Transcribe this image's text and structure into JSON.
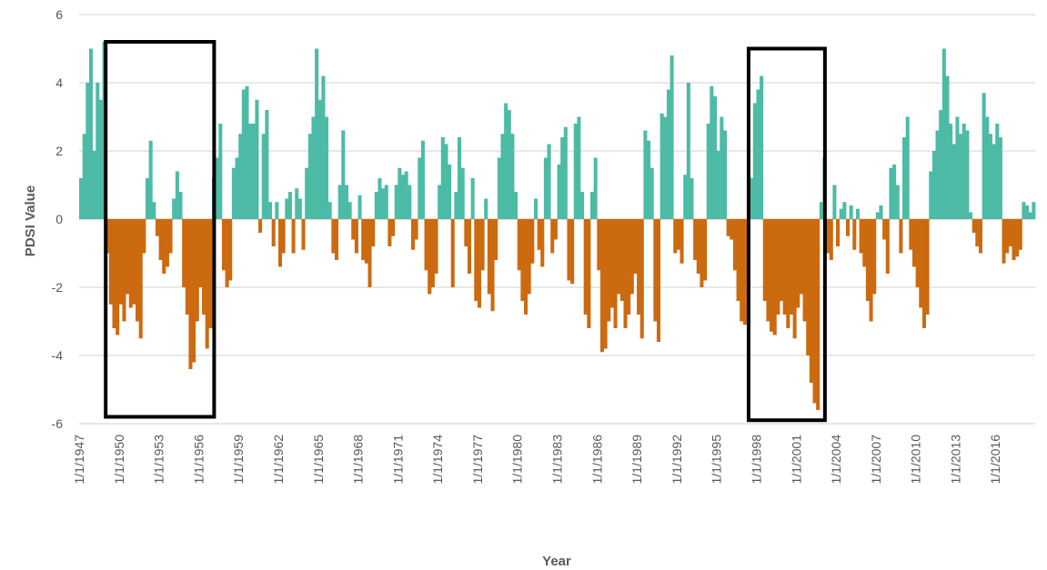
{
  "chart_data": {
    "type": "bar",
    "xlabel": "Year",
    "ylabel": "PDSI Value",
    "ylim": [
      -6,
      6
    ],
    "y_ticks": [
      "6",
      "4",
      "2",
      "0",
      "-2",
      "-4",
      "-6"
    ],
    "x_ticks": [
      "1/1/1947",
      "1/1/1950",
      "1/1/1953",
      "1/1/1956",
      "1/1/1959",
      "1/1/1962",
      "1/1/1965",
      "1/1/1968",
      "1/1/1971",
      "1/1/1974",
      "1/1/1977",
      "1/1/1980",
      "1/1/1983",
      "1/1/1986",
      "1/1/1989",
      "1/1/1992",
      "1/1/1995",
      "1/1/1998",
      "1/1/2001",
      "1/1/2004",
      "1/1/2007",
      "1/1/2010",
      "1/1/2013",
      "1/1/2016"
    ],
    "x_range": [
      "1947-01",
      "2018-12"
    ],
    "grid": "horizontal",
    "legend": "none",
    "colors": {
      "positive": "#4dbba6",
      "negative": "#cc6a10",
      "grid": "#d0d0d0",
      "text": "#595959",
      "box": "#000000"
    },
    "series": [
      {
        "values_by_year_approx": [
          [
            1947,
            1.2,
            2.5,
            4.0,
            5.0
          ],
          [
            1948,
            2.0,
            4.0,
            3.5,
            5.2
          ],
          [
            1949,
            -1.0,
            -2.5,
            -3.2,
            -3.4
          ],
          [
            1950,
            -2.5,
            -3.0,
            -2.2,
            -2.6
          ],
          [
            1951,
            -2.5,
            -3.0,
            -3.5,
            -1.0
          ],
          [
            1952,
            1.2,
            2.3,
            0.5,
            -0.5
          ],
          [
            1953,
            -1.2,
            -1.6,
            -1.4,
            -1.0
          ],
          [
            1954,
            0.6,
            1.4,
            0.8,
            -2.0
          ],
          [
            1955,
            -2.8,
            -4.4,
            -4.2,
            -3.0
          ],
          [
            1956,
            -2.0,
            -2.8,
            -3.8,
            -3.2
          ],
          [
            1957,
            1.2,
            1.8,
            2.8,
            -1.5
          ],
          [
            1958,
            -2.0,
            -1.8,
            1.5,
            1.8
          ],
          [
            1959,
            2.5,
            3.8,
            3.9,
            2.8
          ],
          [
            1960,
            2.8,
            3.5,
            -0.4,
            2.5
          ],
          [
            1961,
            3.2,
            0.5,
            -0.8,
            0.5
          ],
          [
            1962,
            -1.4,
            -1.0,
            0.6,
            0.8
          ],
          [
            1963,
            -1.0,
            0.9,
            0.6,
            -0.9
          ],
          [
            1964,
            1.5,
            2.5,
            3.0,
            5.0
          ],
          [
            1965,
            3.5,
            4.2,
            3.0,
            0.5
          ],
          [
            1966,
            -1.0,
            -1.2,
            1.0,
            2.6
          ],
          [
            1967,
            1.0,
            0.5,
            -0.6,
            -1.0
          ],
          [
            1968,
            0.7,
            -1.2,
            -1.3,
            -2.0
          ],
          [
            1969,
            -0.8,
            0.8,
            1.2,
            0.9
          ],
          [
            1970,
            1.0,
            -0.8,
            -0.5,
            1.0
          ],
          [
            1971,
            1.5,
            1.3,
            1.4,
            1.0
          ],
          [
            1972,
            -0.9,
            -0.6,
            1.8,
            2.3
          ],
          [
            1973,
            -1.5,
            -2.2,
            -2.0,
            -1.6
          ],
          [
            1974,
            1.0,
            2.4,
            2.2,
            1.6
          ],
          [
            1975,
            -2.0,
            0.8,
            2.4,
            1.5
          ],
          [
            1976,
            -0.8,
            -1.6,
            1.2,
            -2.4
          ],
          [
            1977,
            -2.6,
            -1.5,
            0.6,
            -2.2
          ],
          [
            1978,
            -2.7,
            -1.2,
            1.8,
            2.5
          ],
          [
            1979,
            3.4,
            3.2,
            2.5,
            0.8
          ],
          [
            1980,
            -1.5,
            -2.4,
            -2.8,
            -2.2
          ],
          [
            1981,
            -1.3,
            0.6,
            -0.9,
            -1.4
          ],
          [
            1982,
            1.8,
            2.2,
            -1.0,
            -0.6
          ],
          [
            1983,
            1.6,
            2.4,
            2.7,
            -1.8
          ],
          [
            1984,
            -1.9,
            2.8,
            3.0,
            0.8
          ],
          [
            1985,
            -2.8,
            -3.2,
            0.8,
            1.8
          ],
          [
            1986,
            -1.5,
            -3.9,
            -3.8,
            -3.0
          ],
          [
            1987,
            -2.6,
            -3.2,
            -2.2,
            -2.4
          ],
          [
            1988,
            -3.2,
            -2.8,
            -2.2,
            -1.6
          ],
          [
            1989,
            -2.8,
            -3.5,
            2.6,
            2.3
          ],
          [
            1990,
            1.5,
            -3.0,
            -3.6,
            3.1
          ],
          [
            1991,
            3.0,
            3.8,
            4.8,
            -1.0
          ],
          [
            1992,
            -0.9,
            -1.3,
            1.3,
            4.0
          ],
          [
            1993,
            1.2,
            -1.2,
            -1.6,
            -2.0
          ],
          [
            1994,
            -1.8,
            2.8,
            3.9,
            3.6
          ],
          [
            1995,
            2.0,
            3.0,
            2.6,
            -0.5
          ],
          [
            1996,
            -0.6,
            -1.5,
            -2.4,
            -3.0
          ],
          [
            1997,
            -3.1,
            -1.3,
            1.2,
            3.4
          ],
          [
            1998,
            3.8,
            4.2,
            -2.4,
            -3.0
          ],
          [
            1999,
            -3.3,
            -3.4,
            -2.8,
            -2.4
          ],
          [
            2000,
            -2.8,
            -3.2,
            -2.8,
            -3.5
          ],
          [
            2001,
            -2.6,
            -2.2,
            -3.0,
            -4.0
          ],
          [
            2002,
            -4.8,
            -5.4,
            -5.6,
            0.5
          ],
          [
            2003,
            1.8,
            -1.0,
            -1.2,
            1.0
          ],
          [
            2004,
            -0.8,
            0.3,
            0.5,
            -0.5
          ],
          [
            2005,
            0.4,
            -0.9,
            0.3,
            -1.0
          ],
          [
            2006,
            -1.4,
            -2.4,
            -3.0,
            -2.2
          ],
          [
            2007,
            0.2,
            0.4,
            -0.6,
            -1.6
          ],
          [
            2008,
            1.5,
            1.6,
            1.0,
            -1.0
          ],
          [
            2009,
            2.4,
            3.0,
            -0.9,
            -1.4
          ],
          [
            2010,
            -2.0,
            -2.6,
            -3.2,
            -2.8
          ],
          [
            2011,
            1.4,
            2.0,
            2.6,
            3.2
          ],
          [
            2012,
            5.0,
            4.2,
            2.8,
            2.2
          ],
          [
            2013,
            3.0,
            2.5,
            2.8,
            2.6
          ],
          [
            2014,
            0.2,
            -0.4,
            -0.8,
            -1.0
          ],
          [
            2015,
            3.7,
            3.0,
            2.5,
            2.2
          ],
          [
            2016,
            2.8,
            2.4,
            -1.3,
            -1.0
          ],
          [
            2017,
            -0.8,
            -1.2,
            -1.1,
            -0.9
          ],
          [
            2018,
            0.5,
            0.4,
            0.2,
            0.5
          ]
        ]
      }
    ],
    "highlight_boxes": [
      {
        "x0": "1949-01",
        "x1": "1957-03",
        "y0": -5.8,
        "y1": 5.2
      },
      {
        "x0": "1997-06",
        "x1": "2003-03",
        "y0": -5.9,
        "y1": 5.0
      }
    ]
  }
}
